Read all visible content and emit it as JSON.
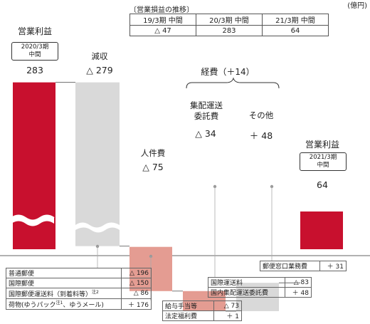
{
  "unit_label": "(億円)",
  "history": {
    "caption": "〔営業損益の推移〕",
    "headers": [
      "19/3期 中間",
      "20/3期 中間",
      "21/3期 中間"
    ],
    "values": [
      "△ 47",
      "283",
      "64"
    ]
  },
  "chart_data": {
    "type": "waterfall",
    "unit": "億円",
    "steps": [
      {
        "label": "営業利益",
        "sublabel": "2020/3期 中間",
        "value": 283,
        "display": "283",
        "kind": "total"
      },
      {
        "label": "減収",
        "value": -279,
        "display": "△ 279",
        "kind": "delta"
      },
      {
        "label": "人件費",
        "value": -75,
        "display": "△ 75",
        "kind": "delta"
      },
      {
        "label": "集配運送委託費",
        "value": -34,
        "display": "△ 34",
        "kind": "delta"
      },
      {
        "label": "その他",
        "value": 48,
        "display": "＋ 48",
        "kind": "delta"
      },
      {
        "label": "営業利益",
        "sublabel": "2021/3期 中間",
        "value": 64,
        "display": "64",
        "kind": "total"
      }
    ],
    "group_annotation": "経費（＋14）",
    "colors": {
      "total": "#c8102e",
      "decrease_major": "#d9d9d9",
      "decrease": "#e49c92",
      "other": "#d9d9d9"
    }
  },
  "labels": {
    "start_title": "営業利益",
    "start_period": "2020/3期\n中間",
    "start_value": "283",
    "revenue_title": "減収",
    "revenue_value": "△ 279",
    "expense_group": "経費（＋14）",
    "personnel_title": "人件費",
    "personnel_value": "△ 75",
    "delivery_title": "集配運送\n委託費",
    "delivery_value": "△ 34",
    "other_title": "その他",
    "other_value": "＋ 48",
    "end_title": "営業利益",
    "end_period": "2021/3期\n中間",
    "end_value": "64"
  },
  "breakdowns": {
    "revenue": [
      {
        "label": "普通郵便",
        "value": "△ 196"
      },
      {
        "label": "国際郵便",
        "value": "△ 150"
      },
      {
        "label": "国際郵便運送料（到着料等）",
        "note": "注2",
        "value": "△ 86"
      },
      {
        "label": "荷物(ゆうパック",
        "note": "注1",
        "label_tail": "、ゆうメール)",
        "value": "＋ 176"
      }
    ],
    "personnel": [
      {
        "label": "給与手当等",
        "value": "△ 73"
      },
      {
        "label": "法定福利費",
        "value": "＋ 1"
      }
    ],
    "delivery": [
      {
        "label": "国際運送料",
        "value": "△ 83"
      },
      {
        "label": "国内集配運送委託費",
        "value": "＋ 48"
      }
    ],
    "other": [
      {
        "label": "郵便窓口業務費",
        "value": "＋ 31"
      }
    ]
  }
}
